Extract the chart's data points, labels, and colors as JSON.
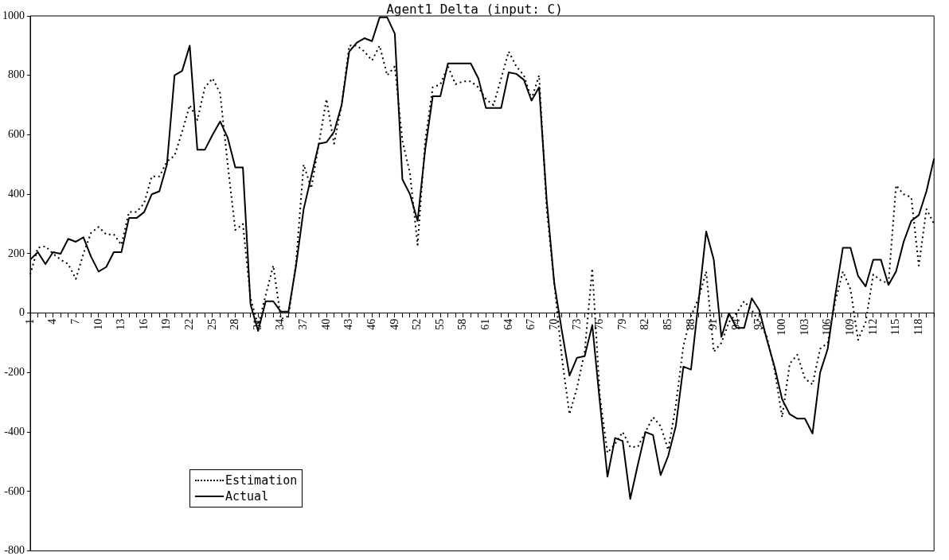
{
  "chart_data": {
    "type": "line",
    "title": "Agent1 Delta (input: C)",
    "categories": [
      "1",
      null,
      null,
      "4",
      null,
      null,
      "7",
      null,
      null,
      "10",
      null,
      null,
      "13",
      null,
      null,
      "16",
      null,
      null,
      "19",
      null,
      null,
      "22",
      null,
      null,
      "25",
      null,
      null,
      "28",
      null,
      null,
      "31",
      null,
      null,
      "34",
      null,
      null,
      "37",
      null,
      null,
      "40",
      null,
      null,
      "43",
      null,
      null,
      "46",
      null,
      null,
      "49",
      null,
      null,
      "52",
      null,
      null,
      "55",
      null,
      null,
      "58",
      null,
      null,
      "61",
      null,
      null,
      "64",
      null,
      null,
      "67",
      null,
      null,
      "70",
      null,
      null,
      "73",
      null,
      null,
      "76",
      null,
      null,
      "79",
      null,
      null,
      "82",
      null,
      null,
      "85",
      null,
      null,
      "88",
      null,
      null,
      "91",
      null,
      null,
      "94",
      null,
      null,
      "97",
      null,
      null,
      "100",
      null,
      null,
      "103",
      null,
      null,
      "106",
      null,
      null,
      "109",
      null,
      null,
      "112",
      null,
      null,
      "115",
      null,
      null,
      "118",
      null,
      null
    ],
    "series": [
      {
        "name": "Estimation",
        "color": "#000000",
        "line_style": "dotted",
        "values": [
          130,
          220,
          225,
          200,
          180,
          165,
          115,
          200,
          270,
          290,
          265,
          265,
          230,
          340,
          340,
          370,
          460,
          460,
          510,
          530,
          610,
          700,
          650,
          760,
          790,
          740,
          500,
          280,
          300,
          50,
          -40,
          60,
          160,
          -20,
          -10,
          170,
          500,
          420,
          570,
          720,
          570,
          700,
          900,
          900,
          880,
          850,
          900,
          800,
          830,
          580,
          470,
          230,
          580,
          760,
          770,
          830,
          770,
          780,
          780,
          760,
          720,
          700,
          790,
          880,
          830,
          800,
          720,
          800,
          350,
          100,
          -150,
          -340,
          -250,
          -130,
          150,
          -280,
          -470,
          -440,
          -400,
          -450,
          -450,
          -400,
          -350,
          -380,
          -460,
          -310,
          -110,
          -10,
          50,
          140,
          -130,
          -100,
          -30,
          0,
          40,
          10,
          -30,
          -80,
          -190,
          -350,
          -170,
          -140,
          -220,
          -240,
          -120,
          -100,
          40,
          140,
          80,
          -90,
          -30,
          130,
          110,
          100,
          430,
          400,
          390,
          160,
          350,
          300
        ]
      },
      {
        "name": "Actual",
        "color": "#000000",
        "line_style": "solid",
        "values": [
          180,
          205,
          165,
          205,
          200,
          250,
          240,
          255,
          190,
          140,
          155,
          205,
          205,
          320,
          320,
          340,
          400,
          410,
          500,
          800,
          815,
          900,
          550,
          550,
          600,
          645,
          590,
          490,
          490,
          30,
          -60,
          40,
          40,
          5,
          5,
          160,
          350,
          460,
          570,
          575,
          610,
          700,
          880,
          910,
          925,
          915,
          995,
          995,
          940,
          450,
          400,
          310,
          550,
          730,
          730,
          840,
          840,
          840,
          840,
          790,
          690,
          690,
          690,
          810,
          805,
          785,
          715,
          760,
          380,
          100,
          -60,
          -210,
          -150,
          -145,
          -40,
          -300,
          -550,
          -420,
          -430,
          -625,
          -510,
          -400,
          -410,
          -545,
          -480,
          -380,
          -180,
          -190,
          40,
          275,
          180,
          -80,
          0,
          -50,
          -50,
          50,
          10,
          -90,
          -180,
          -290,
          -340,
          -355,
          -355,
          -405,
          -200,
          -120,
          60,
          220,
          220,
          125,
          90,
          180,
          180,
          95,
          140,
          240,
          310,
          330,
          410,
          520
        ]
      }
    ],
    "ylim": [
      -800,
      1000
    ],
    "yticks": [
      -800,
      -600,
      -400,
      -200,
      0,
      200,
      400,
      600,
      800,
      1000
    ],
    "grid": false,
    "legend": "bottom left",
    "marker": "none"
  }
}
